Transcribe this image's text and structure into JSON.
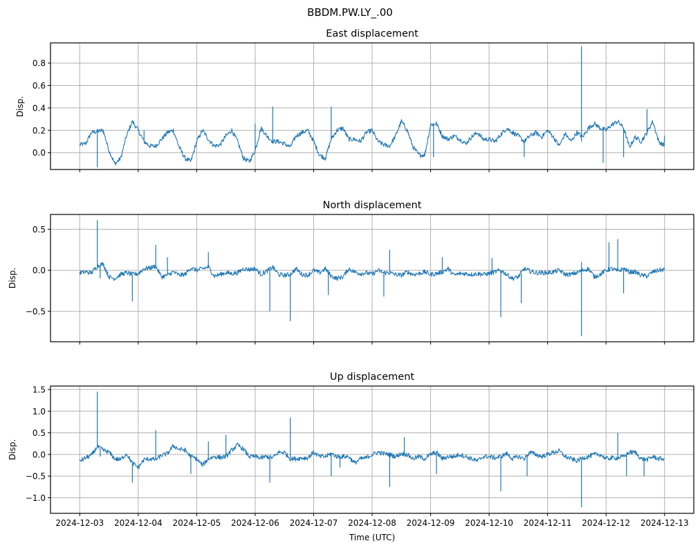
{
  "figure": {
    "suptitle": "BBDM.PW.LY_.00",
    "line_color": "#1f77b4",
    "grid_color": "#b0b0b0",
    "xlabel": "Time (UTC)"
  },
  "chart_data": [
    {
      "type": "line",
      "title": "East displacement",
      "ylabel": "Disp.",
      "xlabel": "",
      "xlim": [
        -0.5,
        10.5
      ],
      "ylim": [
        -0.15,
        0.98
      ],
      "yticks": [
        0.0,
        0.2,
        0.4,
        0.6,
        0.8
      ],
      "ytick_labels": [
        "0.0",
        "0.2",
        "0.4",
        "0.6",
        "0.8"
      ],
      "xtick_labels": [
        "",
        "",
        "",
        "",
        "",
        "",
        "",
        "",
        "",
        "",
        ""
      ],
      "grid": true,
      "series": [
        {
          "name": "East",
          "x_days_since_2024-12-03": [
            0,
            0.1,
            0.2,
            0.3,
            0.4,
            0.5,
            0.6,
            0.7,
            0.8,
            0.9,
            1.0,
            1.1,
            1.2,
            1.3,
            1.4,
            1.5,
            1.6,
            1.7,
            1.8,
            1.9,
            2.0,
            2.1,
            2.2,
            2.3,
            2.4,
            2.5,
            2.6,
            2.7,
            2.8,
            2.9,
            3.0,
            3.1,
            3.2,
            3.3,
            3.4,
            3.5,
            3.6,
            3.7,
            3.8,
            3.9,
            4.0,
            4.1,
            4.2,
            4.3,
            4.4,
            4.5,
            4.6,
            4.7,
            4.8,
            4.9,
            5.0,
            5.1,
            5.2,
            5.3,
            5.4,
            5.5,
            5.6,
            5.7,
            5.8,
            5.9,
            6.0,
            6.1,
            6.2,
            6.3,
            6.4,
            6.5,
            6.6,
            6.7,
            6.8,
            6.9,
            7.0,
            7.1,
            7.2,
            7.3,
            7.4,
            7.5,
            7.6,
            7.7,
            7.8,
            7.9,
            8.0,
            8.1,
            8.2,
            8.3,
            8.4,
            8.5,
            8.6,
            8.7,
            8.8,
            8.9,
            9.0,
            9.1,
            9.2,
            9.3,
            9.4,
            9.5,
            9.6,
            9.7,
            9.8,
            9.9,
            10.0
          ],
          "y": [
            0.07,
            0.08,
            0.18,
            0.19,
            0.2,
            0.02,
            -0.1,
            -0.05,
            0.15,
            0.28,
            0.2,
            0.1,
            0.06,
            0.06,
            0.12,
            0.18,
            0.2,
            0.05,
            -0.05,
            -0.08,
            0.1,
            0.2,
            0.12,
            0.06,
            0.07,
            0.15,
            0.2,
            0.1,
            -0.05,
            -0.08,
            0.02,
            0.22,
            0.15,
            0.1,
            0.1,
            0.08,
            0.05,
            0.15,
            0.18,
            0.2,
            0.1,
            -0.02,
            -0.05,
            0.12,
            0.2,
            0.22,
            0.12,
            0.12,
            0.1,
            0.18,
            0.2,
            0.1,
            0.07,
            0.06,
            0.15,
            0.28,
            0.2,
            0.05,
            -0.02,
            -0.02,
            0.25,
            0.26,
            0.15,
            0.12,
            0.15,
            0.12,
            0.08,
            0.14,
            0.18,
            0.12,
            0.12,
            0.1,
            0.16,
            0.22,
            0.18,
            0.15,
            0.1,
            0.15,
            0.18,
            0.14,
            0.2,
            0.14,
            0.06,
            0.17,
            0.1,
            0.18,
            0.14,
            0.22,
            0.26,
            0.22,
            0.2,
            0.25,
            0.28,
            0.22,
            0.05,
            0.14,
            0.1,
            0.18,
            0.28,
            0.1,
            0.06,
            0.15
          ],
          "spikes": [
            {
              "x": 0.3,
              "y": -0.13
            },
            {
              "x": 1.1,
              "y": 0.2
            },
            {
              "x": 3.3,
              "y": 0.41
            },
            {
              "x": 3.0,
              "y": 0.26
            },
            {
              "x": 4.3,
              "y": 0.41
            },
            {
              "x": 4.2,
              "y": -0.04
            },
            {
              "x": 6.05,
              "y": -0.04
            },
            {
              "x": 6.0,
              "y": 0.26
            },
            {
              "x": 7.6,
              "y": -0.04
            },
            {
              "x": 8.58,
              "y": 0.95
            },
            {
              "x": 8.58,
              "y": 0.1
            },
            {
              "x": 8.95,
              "y": -0.09
            },
            {
              "x": 9.3,
              "y": -0.04
            },
            {
              "x": 9.7,
              "y": 0.39
            }
          ]
        }
      ]
    },
    {
      "type": "line",
      "title": "North displacement",
      "ylabel": "Disp.",
      "xlabel": "",
      "xlim": [
        -0.5,
        10.5
      ],
      "ylim": [
        -0.87,
        0.68
      ],
      "yticks": [
        -0.5,
        0.0,
        0.5
      ],
      "ytick_labels": [
        "−0.5",
        "0.0",
        "0.5"
      ],
      "xtick_labels": [
        "",
        "",
        "",
        "",
        "",
        "",
        "",
        "",
        "",
        "",
        ""
      ],
      "grid": true,
      "series": [
        {
          "name": "North",
          "x_days_since_2024-12-03": [
            0,
            0.1,
            0.2,
            0.3,
            0.4,
            0.5,
            0.6,
            0.7,
            0.8,
            0.9,
            1.0,
            1.1,
            1.2,
            1.3,
            1.4,
            1.5,
            1.6,
            1.7,
            1.8,
            1.9,
            2.0,
            2.1,
            2.2,
            2.3,
            2.4,
            2.5,
            2.6,
            2.7,
            2.8,
            2.9,
            3.0,
            3.1,
            3.2,
            3.3,
            3.4,
            3.5,
            3.6,
            3.7,
            3.8,
            3.9,
            4.0,
            4.1,
            4.2,
            4.3,
            4.4,
            4.5,
            4.6,
            4.7,
            4.8,
            4.9,
            5.0,
            5.1,
            5.2,
            5.3,
            5.4,
            5.5,
            5.6,
            5.7,
            5.8,
            5.9,
            6.0,
            6.1,
            6.2,
            6.3,
            6.4,
            6.5,
            6.6,
            6.7,
            6.8,
            6.9,
            7.0,
            7.1,
            7.2,
            7.3,
            7.4,
            7.5,
            7.6,
            7.7,
            7.8,
            7.9,
            8.0,
            8.1,
            8.2,
            8.3,
            8.4,
            8.5,
            8.6,
            8.7,
            8.8,
            8.9,
            9.0,
            9.1,
            9.2,
            9.3,
            9.4,
            9.5,
            9.6,
            9.7,
            9.8,
            9.9,
            10.0
          ],
          "y": [
            -0.03,
            -0.02,
            -0.03,
            0.05,
            0.08,
            -0.08,
            -0.1,
            -0.05,
            -0.03,
            -0.05,
            -0.04,
            0.02,
            0.03,
            0.05,
            -0.08,
            -0.06,
            -0.02,
            -0.06,
            -0.05,
            0.03,
            0.0,
            0.02,
            0.04,
            -0.07,
            -0.05,
            -0.03,
            -0.04,
            -0.03,
            0.02,
            0.01,
            0.02,
            -0.05,
            -0.01,
            0.04,
            -0.05,
            -0.06,
            -0.05,
            0.02,
            -0.05,
            -0.06,
            0.0,
            -0.03,
            0.02,
            -0.07,
            -0.1,
            -0.08,
            0.02,
            -0.02,
            -0.04,
            -0.03,
            -0.05,
            0.0,
            -0.03,
            -0.03,
            -0.05,
            -0.06,
            -0.02,
            -0.05,
            -0.04,
            -0.02,
            -0.05,
            -0.04,
            -0.02,
            0.02,
            -0.06,
            -0.04,
            -0.04,
            -0.05,
            -0.04,
            -0.05,
            -0.04,
            -0.02,
            0.0,
            -0.05,
            -0.1,
            -0.08,
            0.02,
            -0.01,
            -0.03,
            -0.03,
            -0.03,
            -0.02,
            0.0,
            -0.05,
            -0.05,
            -0.03,
            0.0,
            0.02,
            -0.08,
            -0.05,
            0.0,
            0.02,
            -0.01,
            0.02,
            -0.02,
            -0.02,
            -0.06,
            -0.07,
            -0.02,
            0.0,
            0.01
          ],
          "spikes": [
            {
              "x": 0.3,
              "y": 0.61
            },
            {
              "x": 0.35,
              "y": -0.1
            },
            {
              "x": 0.9,
              "y": -0.38
            },
            {
              "x": 1.3,
              "y": 0.31
            },
            {
              "x": 1.5,
              "y": 0.16
            },
            {
              "x": 2.2,
              "y": 0.22
            },
            {
              "x": 3.25,
              "y": -0.5
            },
            {
              "x": 3.6,
              "y": -0.62
            },
            {
              "x": 4.25,
              "y": -0.3
            },
            {
              "x": 5.2,
              "y": -0.32
            },
            {
              "x": 5.3,
              "y": 0.25
            },
            {
              "x": 6.2,
              "y": 0.16
            },
            {
              "x": 7.2,
              "y": -0.57
            },
            {
              "x": 7.05,
              "y": 0.15
            },
            {
              "x": 7.55,
              "y": -0.4
            },
            {
              "x": 8.58,
              "y": -0.8
            },
            {
              "x": 8.58,
              "y": 0.1
            },
            {
              "x": 9.05,
              "y": 0.34
            },
            {
              "x": 9.2,
              "y": 0.38
            },
            {
              "x": 9.3,
              "y": -0.28
            }
          ]
        }
      ]
    },
    {
      "type": "line",
      "title": "Up displacement",
      "ylabel": "Disp.",
      "xlabel": "Time (UTC)",
      "xlim": [
        -0.5,
        10.5
      ],
      "ylim": [
        -1.36,
        1.58
      ],
      "yticks": [
        -1.0,
        -0.5,
        0.0,
        0.5,
        1.0,
        1.5
      ],
      "ytick_labels": [
        "−1.0",
        "−0.5",
        "0.0",
        "0.5",
        "1.0",
        "1.5"
      ],
      "xtick_labels": [
        "2024-12-03",
        "2024-12-04",
        "2024-12-05",
        "2024-12-06",
        "2024-12-07",
        "2024-12-08",
        "2024-12-09",
        "2024-12-10",
        "2024-12-11",
        "2024-12-12",
        "2024-12-13"
      ],
      "grid": true,
      "series": [
        {
          "name": "Up",
          "x_days_since_2024-12-03": [
            0,
            0.1,
            0.2,
            0.3,
            0.4,
            0.5,
            0.6,
            0.7,
            0.8,
            0.9,
            1.0,
            1.1,
            1.2,
            1.3,
            1.4,
            1.5,
            1.6,
            1.7,
            1.8,
            1.9,
            2.0,
            2.1,
            2.2,
            2.3,
            2.4,
            2.5,
            2.6,
            2.7,
            2.8,
            2.9,
            3.0,
            3.1,
            3.2,
            3.3,
            3.4,
            3.5,
            3.6,
            3.7,
            3.8,
            3.9,
            4.0,
            4.1,
            4.2,
            4.3,
            4.4,
            4.5,
            4.6,
            4.7,
            4.8,
            4.9,
            5.0,
            5.1,
            5.2,
            5.3,
            5.4,
            5.5,
            5.6,
            5.7,
            5.8,
            5.9,
            6.0,
            6.1,
            6.2,
            6.3,
            6.4,
            6.5,
            6.6,
            6.7,
            6.8,
            6.9,
            7.0,
            7.1,
            7.2,
            7.3,
            7.4,
            7.5,
            7.6,
            7.7,
            7.8,
            7.9,
            8.0,
            8.1,
            8.2,
            8.3,
            8.4,
            8.5,
            8.6,
            8.7,
            8.8,
            8.9,
            9.0,
            9.1,
            9.2,
            9.3,
            9.4,
            9.5,
            9.6,
            9.7,
            9.8,
            9.9,
            10.0
          ],
          "y": [
            -0.15,
            -0.08,
            -0.02,
            0.18,
            0.1,
            0.05,
            -0.1,
            -0.12,
            0.02,
            -0.2,
            -0.3,
            -0.12,
            -0.1,
            -0.12,
            -0.02,
            0.02,
            0.2,
            0.12,
            0.1,
            -0.05,
            -0.1,
            -0.25,
            -0.1,
            -0.05,
            -0.07,
            -0.05,
            0.1,
            0.22,
            0.12,
            -0.05,
            -0.05,
            -0.08,
            -0.05,
            -0.08,
            0.05,
            0.05,
            -0.1,
            -0.1,
            -0.08,
            -0.08,
            0.05,
            -0.05,
            -0.05,
            0.02,
            -0.05,
            -0.05,
            -0.05,
            -0.2,
            -0.1,
            -0.08,
            0.0,
            0.05,
            0.02,
            0.0,
            -0.05,
            0.02,
            0.0,
            -0.1,
            -0.05,
            -0.1,
            0.0,
            0.05,
            -0.1,
            -0.05,
            -0.05,
            0.0,
            -0.05,
            -0.1,
            -0.15,
            -0.05,
            -0.05,
            -0.08,
            -0.05,
            0.02,
            -0.1,
            -0.05,
            -0.1,
            0.05,
            0.0,
            -0.05,
            0.0,
            0.05,
            0.08,
            -0.05,
            -0.1,
            -0.15,
            -0.08,
            -0.05,
            0.0,
            0.0,
            -0.1,
            -0.08,
            -0.08,
            -0.05,
            0.05,
            0.05,
            -0.1,
            -0.12,
            -0.05,
            -0.1,
            -0.1
          ],
          "spikes": [
            {
              "x": 0.3,
              "y": 1.45
            },
            {
              "x": 0.35,
              "y": -0.05
            },
            {
              "x": 0.9,
              "y": -0.65
            },
            {
              "x": 1.3,
              "y": 0.56
            },
            {
              "x": 1.9,
              "y": -0.45
            },
            {
              "x": 2.2,
              "y": 0.3
            },
            {
              "x": 2.5,
              "y": 0.45
            },
            {
              "x": 3.25,
              "y": -0.65
            },
            {
              "x": 3.6,
              "y": 0.85
            },
            {
              "x": 4.3,
              "y": -0.5
            },
            {
              "x": 4.45,
              "y": -0.3
            },
            {
              "x": 5.3,
              "y": -0.75
            },
            {
              "x": 5.55,
              "y": 0.4
            },
            {
              "x": 6.1,
              "y": -0.45
            },
            {
              "x": 7.2,
              "y": -0.85
            },
            {
              "x": 7.65,
              "y": -0.5
            },
            {
              "x": 8.58,
              "y": -1.22
            },
            {
              "x": 9.2,
              "y": 0.5
            },
            {
              "x": 9.35,
              "y": -0.5
            },
            {
              "x": 9.65,
              "y": -0.5
            }
          ]
        }
      ]
    }
  ]
}
